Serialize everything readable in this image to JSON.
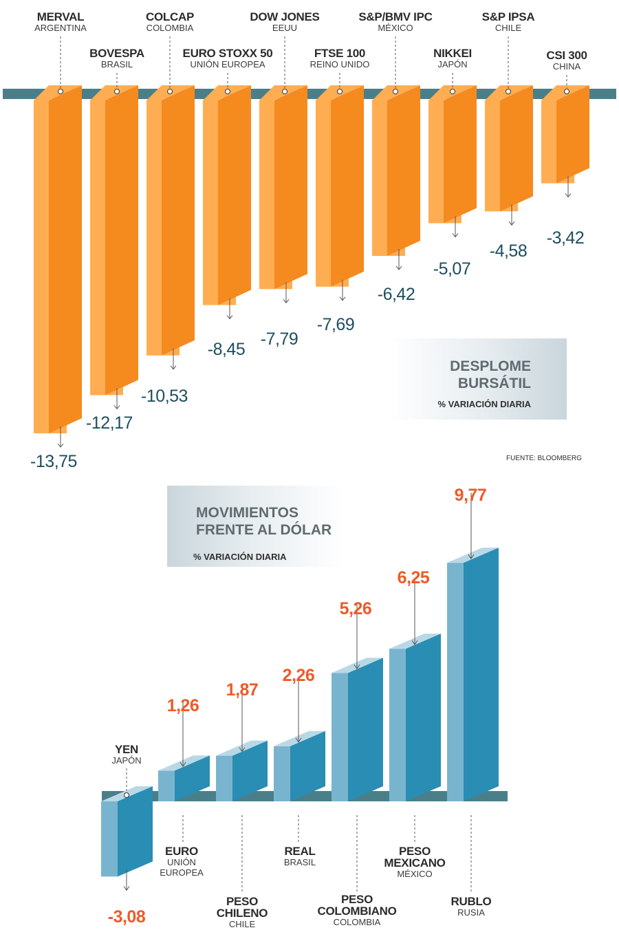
{
  "chart_data": [
    {
      "type": "bar",
      "title": "DESPLOME BURSÁTIL",
      "units": "% VARIACIÓN DIARIA",
      "source": "FUENTE: BLOOMBERG",
      "bar_color": "#f58a1f",
      "bar_light_color": "#ffad52",
      "series": [
        {
          "values": [
            -13.75,
            -12.17,
            -10.53,
            -8.45,
            -7.79,
            -7.69,
            -6.42,
            -5.07,
            -4.58,
            -3.42
          ],
          "value_labels": [
            "-13,75",
            "-12,17",
            "-10,53",
            "-8,45",
            "-7,79",
            "-7,69",
            "-6,42",
            "-5,07",
            "-4,58",
            "-3,42"
          ]
        }
      ],
      "categories": [
        {
          "name": "MERVAL",
          "country": "ARGENTINA"
        },
        {
          "name": "BOVESPA",
          "country": "BRASIL"
        },
        {
          "name": "COLCAP",
          "country": "COLOMBIA"
        },
        {
          "name": "EURO STOXX 50",
          "country": "UNIÓN EUROPEA"
        },
        {
          "name": "DOW JONES",
          "country": "EEUU"
        },
        {
          "name": "FTSE 100",
          "country": "REINO UNIDO"
        },
        {
          "name": "S&P/BMV IPC",
          "country": "MÉXICO"
        },
        {
          "name": "NIKKEI",
          "country": "JAPÓN"
        },
        {
          "name": "S&P IPSA",
          "country": "CHILE"
        },
        {
          "name": "CSI 300",
          "country": "CHINA"
        }
      ]
    },
    {
      "type": "bar",
      "title": "MOVIMIENTOS FRENTE AL DÓLAR",
      "units": "% VARIACIÓN DIARIA",
      "bar_color": "#2a8db3",
      "bar_light_color": "#b9d8e6",
      "series": [
        {
          "values": [
            -3.08,
            1.26,
            1.87,
            2.26,
            5.26,
            6.25,
            9.77
          ],
          "value_labels": [
            "-3,08",
            "1,26",
            "1,87",
            "2,26",
            "5,26",
            "6,25",
            "9,77"
          ]
        }
      ],
      "categories": [
        {
          "name": "YEN",
          "country": "JAPÓN"
        },
        {
          "name": "EURO",
          "country": "UNIÓN EUROPEA"
        },
        {
          "name": "PESO CHILENO",
          "country": "CHILE"
        },
        {
          "name": "REAL",
          "country": "BRASIL"
        },
        {
          "name": "PESO COLOMBIANO",
          "country": "COLOMBIA"
        },
        {
          "name": "PESO MEXICANO",
          "country": "MÉXICO"
        },
        {
          "name": "RUBLO",
          "country": "RUSIA"
        }
      ]
    }
  ],
  "labels": {
    "chart1_title_line1": "DESPLOME",
    "chart1_title_line2": "BURSÁTIL",
    "chart2_title_line1": "MOVIMIENTOS",
    "chart2_title_line2": "FRENTE AL DÓLAR",
    "names": {
      "merval": "MERVAL",
      "argentina": "ARGENTINA",
      "bovespa": "BOVESPA",
      "brasil": "BRASIL",
      "colcap": "COLCAP",
      "colombia": "COLOMBIA",
      "eurostoxx": "EURO STOXX 50",
      "ue": "UNIÓN EUROPEA",
      "dowjones": "DOW JONES",
      "eeuu": "EEUU",
      "ftse": "FTSE 100",
      "reinounido": "REINO UNIDO",
      "ipc": "S&P/BMV IPC",
      "mexico": "MÉXICO",
      "nikkei": "NIKKEI",
      "japon": "JAPÓN",
      "ipsa": "S&P IPSA",
      "chile": "CHILE",
      "csi": "CSI 300",
      "china": "CHINA",
      "yen": "YEN",
      "euro": "EURO",
      "union": "UNIÓN",
      "europea": "EUROPEA",
      "peso": "PESO",
      "chileno": "CHILENO",
      "real": "REAL",
      "colombiano": "COLOMBIANO",
      "mexicano": "MEXICANO",
      "rublo": "RUBLO",
      "rusia": "RUSIA"
    }
  }
}
